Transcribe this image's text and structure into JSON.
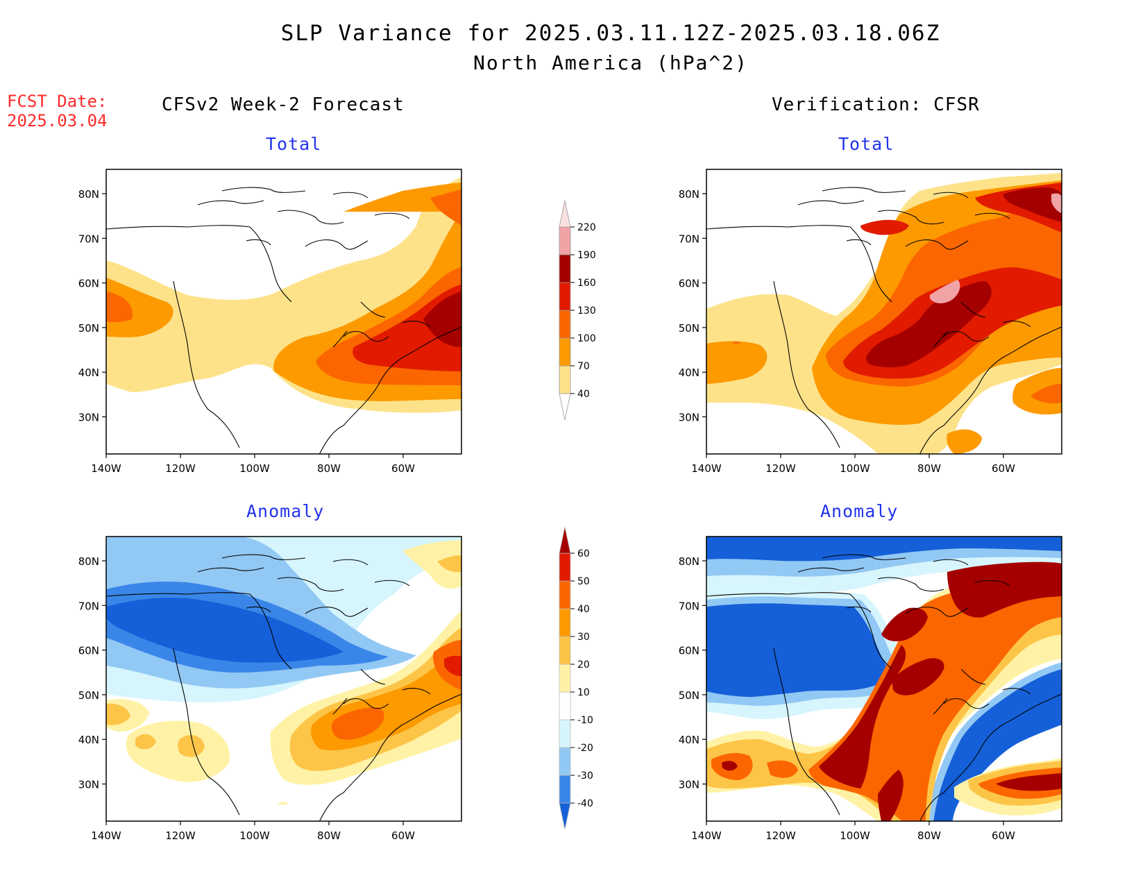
{
  "title": "SLP Variance for 2025.03.11.12Z-2025.03.18.06Z",
  "subtitle": "North America (hPa^2)",
  "forecast_date": {
    "label": "FCST Date:",
    "value": "2025.03.04"
  },
  "columns": {
    "left": "CFSv2 Week-2 Forecast",
    "right": "Verification: CFSR"
  },
  "panels": [
    {
      "id": "fcst-total",
      "title": "Total"
    },
    {
      "id": "verif-total",
      "title": "Total"
    },
    {
      "id": "fcst-anomaly",
      "title": "Anomaly"
    },
    {
      "id": "verif-anomaly",
      "title": "Anomaly"
    }
  ],
  "axes": {
    "lat_labels": [
      "80N",
      "70N",
      "60N",
      "50N",
      "40N",
      "30N"
    ],
    "lon_labels": [
      "140W",
      "120W",
      "100W",
      "80W",
      "60W"
    ]
  },
  "colorbars": {
    "total": {
      "levels": [
        "40",
        "70",
        "100",
        "130",
        "160",
        "190",
        "220"
      ],
      "colors": [
        "#fee28a",
        "#fd9a00",
        "#fb6600",
        "#e11a00",
        "#a50000",
        "#f2a3a6",
        "#fbe0e0"
      ]
    },
    "anomaly": {
      "levels": [
        "-40",
        "-30",
        "-20",
        "-10",
        "10",
        "20",
        "30",
        "40",
        "50",
        "60"
      ],
      "colors": [
        "#1560d8",
        "#3a86e8",
        "#92c8f4",
        "#d6f5fc",
        "#ffffff",
        "#fff2a6",
        "#fdc548",
        "#fd9a00",
        "#fb6600",
        "#e11a00",
        "#a50000"
      ]
    }
  },
  "palette": {
    "t40": "#fee28a",
    "t70": "#fd9a00",
    "t100": "#fb6600",
    "t130": "#e11a00",
    "t160": "#a50000",
    "t190": "#f2a3a6",
    "a_m40": "#1560d8",
    "a_m30": "#3a86e8",
    "a_m20": "#92c8f4",
    "a_m10": "#d6f5fc",
    "a_p10": "#fff2a6",
    "a_p20": "#fdc548",
    "a_p30": "#fd9a00",
    "a_p40": "#fb6600",
    "a_p50": "#e11a00",
    "a_p60": "#a50000"
  }
}
